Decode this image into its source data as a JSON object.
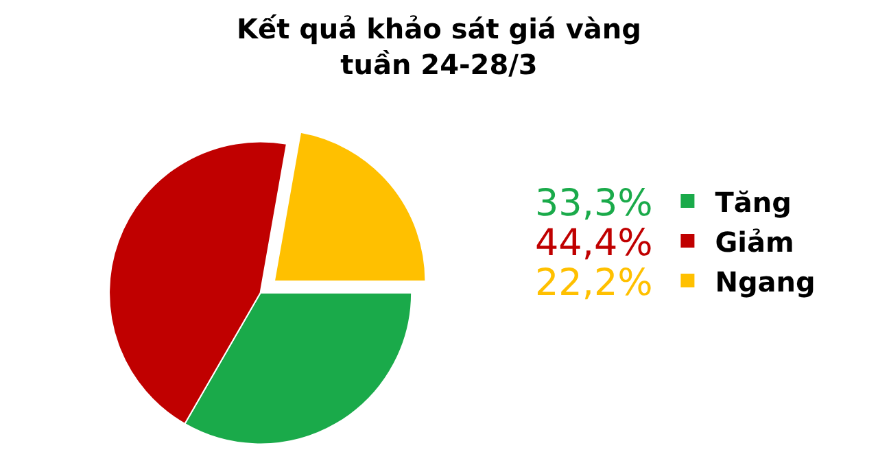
{
  "chart_data": {
    "type": "pie",
    "title": "Kết quả khảo sát giá vàng\ntuần 24-28/3",
    "categories": [
      "Tăng",
      "Giảm",
      "Ngang"
    ],
    "values": [
      33.3,
      44.4,
      22.2
    ],
    "value_labels": [
      "33,3%",
      "44,4%",
      "22,2%"
    ],
    "colors": [
      "#1aaa4a",
      "#c00000",
      "#ffc000"
    ],
    "legend": "right"
  }
}
